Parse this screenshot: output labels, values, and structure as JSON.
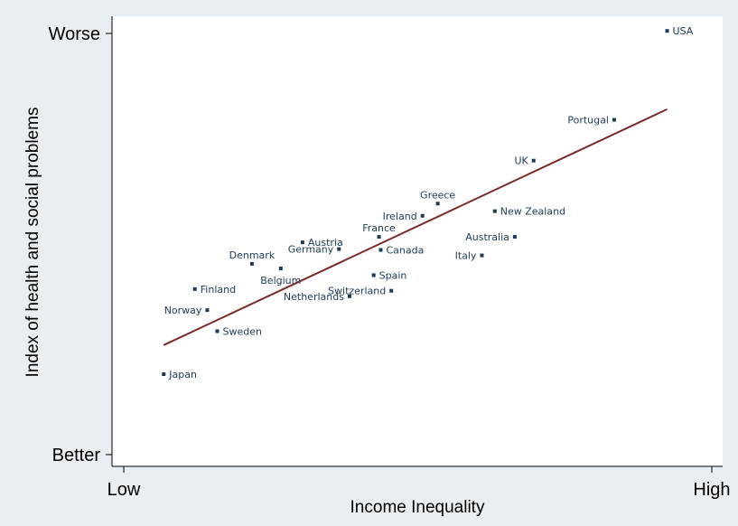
{
  "chart_data": {
    "type": "scatter",
    "xlabel": "Income Inequality",
    "ylabel": "Index of health and social problems",
    "x_ticks": [
      {
        "value": 0,
        "label": "Low"
      },
      {
        "value": 1,
        "label": "High"
      }
    ],
    "y_ticks": [
      {
        "value": 0,
        "label": "Better"
      },
      {
        "value": 1,
        "label": "Worse"
      }
    ],
    "xlim": [
      0,
      1
    ],
    "ylim": [
      0,
      1
    ],
    "grid": false,
    "point_color": "#1f3a55",
    "line_color": "#7a2a2a",
    "background": "#e9eef2",
    "plot_background": "#ffffff",
    "points": [
      {
        "label": "USA",
        "x": 0.924,
        "y": 1.006,
        "label_pos": "right"
      },
      {
        "label": "Portugal",
        "x": 0.834,
        "y": 0.795,
        "label_pos": "left"
      },
      {
        "label": "UK",
        "x": 0.697,
        "y": 0.698,
        "label_pos": "left"
      },
      {
        "label": "Greece",
        "x": 0.534,
        "y": 0.596,
        "label_pos": "above"
      },
      {
        "label": "New Zealand",
        "x": 0.631,
        "y": 0.578,
        "label_pos": "right"
      },
      {
        "label": "Ireland",
        "x": 0.508,
        "y": 0.567,
        "label_pos": "left"
      },
      {
        "label": "France",
        "x": 0.434,
        "y": 0.517,
        "label_pos": "above"
      },
      {
        "label": "Australia",
        "x": 0.665,
        "y": 0.517,
        "label_pos": "left"
      },
      {
        "label": "Austria",
        "x": 0.304,
        "y": 0.504,
        "label_pos": "right"
      },
      {
        "label": "Germany",
        "x": 0.366,
        "y": 0.488,
        "label_pos": "left"
      },
      {
        "label": "Canada",
        "x": 0.437,
        "y": 0.486,
        "label_pos": "right"
      },
      {
        "label": "Italy",
        "x": 0.609,
        "y": 0.473,
        "label_pos": "left"
      },
      {
        "label": "Denmark",
        "x": 0.218,
        "y": 0.453,
        "label_pos": "above"
      },
      {
        "label": "Belgium",
        "x": 0.267,
        "y": 0.442,
        "label_pos": "below"
      },
      {
        "label": "Spain",
        "x": 0.425,
        "y": 0.426,
        "label_pos": "right"
      },
      {
        "label": "Finland",
        "x": 0.121,
        "y": 0.393,
        "label_pos": "right"
      },
      {
        "label": "Switzerland",
        "x": 0.455,
        "y": 0.389,
        "label_pos": "left"
      },
      {
        "label": "Netherlands",
        "x": 0.384,
        "y": 0.376,
        "label_pos": "left"
      },
      {
        "label": "Norway",
        "x": 0.142,
        "y": 0.343,
        "label_pos": "left"
      },
      {
        "label": "Sweden",
        "x": 0.159,
        "y": 0.293,
        "label_pos": "right"
      },
      {
        "label": "Japan",
        "x": 0.068,
        "y": 0.191,
        "label_pos": "right"
      }
    ],
    "trend_line": {
      "x": [
        0.068,
        0.924
      ],
      "y": [
        0.26,
        0.82
      ]
    }
  }
}
